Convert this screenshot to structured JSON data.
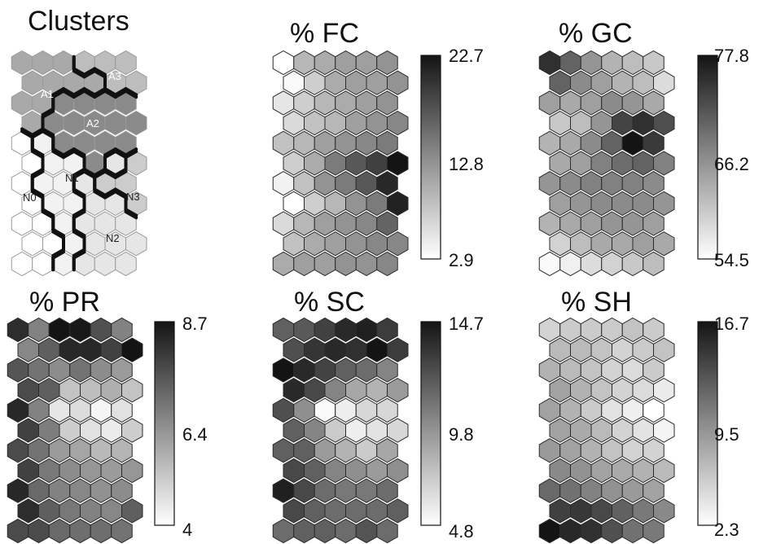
{
  "chart_data": [
    {
      "type": "heatmap",
      "title": "Clusters",
      "grid": {
        "rows": 11,
        "cols": 6
      },
      "cluster_labels": [
        "A1",
        "A2",
        "A3",
        "N0",
        "N1",
        "N2",
        "N3"
      ],
      "regions": [
        {
          "label": "A3",
          "cells": [
            "0,3",
            "0,4",
            "0,5",
            "1,4",
            "1,5"
          ],
          "color": "#bdbdbd"
        },
        {
          "label": "A1",
          "cells": [
            "0,0",
            "0,1",
            "0,2",
            "1,0",
            "1,1",
            "1,2",
            "1,3",
            "2,0",
            "2,1",
            "3,0"
          ],
          "color": "#a9a9a9"
        },
        {
          "label": "A2",
          "cells": [
            "2,2",
            "2,3",
            "2,4",
            "2,5",
            "3,1",
            "3,2",
            "3,3",
            "3,4",
            "3,5",
            "4,2",
            "4,3",
            "4,4",
            "4,5",
            "5,3"
          ],
          "color": "#8a8a8a"
        },
        {
          "label": "N3",
          "cells": [
            "5,5",
            "6,4",
            "6,5",
            "7,5"
          ],
          "color": "#cccccc"
        },
        {
          "label": "N2",
          "cells": [
            "5,4",
            "6,3",
            "7,3",
            "7,4",
            "8,3",
            "8,4",
            "8,5",
            "9,3",
            "9,4",
            "9,5",
            "10,3",
            "10,4",
            "10,5"
          ],
          "color": "#e6e6e6"
        },
        {
          "label": "N1",
          "cells": [
            "4,1",
            "5,1",
            "5,2",
            "6,1",
            "6,2",
            "7,1",
            "7,2",
            "8,2",
            "9,2",
            "10,2"
          ],
          "color": "#f2f2f2"
        },
        {
          "label": "N0",
          "cells": [
            "4,0",
            "5,0",
            "6,0",
            "7,0",
            "8,0",
            "8,1",
            "9,0",
            "9,1",
            "10,0",
            "10,1"
          ],
          "color": "#ffffff"
        }
      ]
    },
    {
      "type": "heatmap",
      "title": "% FC",
      "colorbar": {
        "min": 2.9,
        "mid": 12.8,
        "max": 22.7,
        "ticks": [
          "22.7",
          "12.8",
          "2.9"
        ]
      },
      "grid": {
        "rows": 11,
        "cols": 6
      },
      "values": [
        [
          2.9,
          9,
          10,
          11,
          11,
          12
        ],
        [
          3.3,
          7,
          10,
          11,
          11,
          12
        ],
        [
          5,
          7,
          9,
          10,
          11,
          12
        ],
        [
          6,
          8,
          9,
          11,
          12,
          13
        ],
        [
          8,
          9,
          11,
          12,
          13,
          14
        ],
        [
          7,
          10,
          14,
          17,
          19,
          22.7
        ],
        [
          4,
          8,
          12,
          14,
          17,
          21
        ],
        [
          2.9,
          7,
          9,
          12,
          14,
          21.5
        ],
        [
          6,
          9,
          11,
          12,
          13,
          16
        ],
        [
          8,
          10,
          11,
          12,
          13,
          13
        ],
        [
          10,
          11,
          11,
          12,
          12,
          13
        ]
      ]
    },
    {
      "type": "heatmap",
      "title": "% GC",
      "colorbar": {
        "min": 54.5,
        "mid": 66.2,
        "max": 77.8,
        "ticks": [
          "77.8",
          "66.2",
          "54.5"
        ]
      },
      "grid": {
        "rows": 11,
        "cols": 6
      },
      "values": [
        [
          75,
          70,
          65,
          62,
          61,
          60
        ],
        [
          70,
          66,
          64,
          62,
          61,
          58
        ],
        [
          64,
          63,
          64,
          66,
          65,
          63
        ],
        [
          60,
          61,
          65,
          73,
          75,
          72
        ],
        [
          62,
          63,
          66,
          70,
          77.8,
          74
        ],
        [
          63,
          64,
          67,
          69,
          70,
          67
        ],
        [
          65,
          66,
          67,
          67,
          67,
          66
        ],
        [
          64,
          65,
          66,
          66,
          66,
          65
        ],
        [
          62,
          63,
          64,
          65,
          65,
          64
        ],
        [
          59,
          61,
          63,
          63,
          64,
          63
        ],
        [
          55,
          56,
          58,
          59,
          60,
          61
        ]
      ]
    },
    {
      "type": "heatmap",
      "title": "% PR",
      "colorbar": {
        "min": 4,
        "mid": 6.4,
        "max": 8.7,
        "ticks": [
          "8.7",
          "6.4",
          "4"
        ]
      },
      "grid": {
        "rows": 11,
        "cols": 6
      },
      "values": [
        [
          8.2,
          6.5,
          8.7,
          8.6,
          7.5,
          6.5
        ],
        [
          6.4,
          7.2,
          8.3,
          8.3,
          7.8,
          8.7
        ],
        [
          7.4,
          6.8,
          6.3,
          6.8,
          6.3,
          6
        ],
        [
          7.6,
          7.2,
          5.2,
          5.3,
          5.6,
          5.2
        ],
        [
          8.3,
          6.5,
          4.5,
          4.7,
          4.2,
          4.6
        ],
        [
          7.8,
          6.6,
          5.0,
          4.6,
          4.4,
          5.0
        ],
        [
          7.6,
          6.8,
          6.0,
          5.8,
          5.4,
          5.5
        ],
        [
          7.8,
          6.7,
          6.3,
          6.1,
          6.0,
          6.1
        ],
        [
          8.3,
          7.0,
          6.5,
          6.4,
          6.2,
          6.3
        ],
        [
          8.2,
          7.2,
          6.7,
          6.5,
          6.4,
          7.2
        ],
        [
          7.6,
          7.6,
          7.0,
          6.9,
          6.9,
          6.8
        ]
      ]
    },
    {
      "type": "heatmap",
      "title": "% SC",
      "colorbar": {
        "min": 4.8,
        "mid": 9.8,
        "max": 14.7,
        "ticks": [
          "14.7",
          "9.8",
          "4.8"
        ]
      },
      "grid": {
        "rows": 11,
        "cols": 6
      },
      "values": [
        [
          11.5,
          11.8,
          12.8,
          13.8,
          14.2,
          13
        ],
        [
          12.2,
          13.3,
          13.8,
          13.5,
          14.7,
          13
        ],
        [
          14.7,
          13.8,
          12.7,
          11.5,
          11,
          10
        ],
        [
          13.8,
          12.5,
          10,
          8.5,
          8,
          9
        ],
        [
          12.2,
          9.5,
          5,
          5.5,
          6.5,
          6.5
        ],
        [
          11.5,
          10,
          7,
          5.5,
          6,
          6.5
        ],
        [
          11.5,
          11.5,
          9,
          8,
          7,
          8.5
        ],
        [
          12.5,
          11.5,
          10,
          9.5,
          9,
          9.5
        ],
        [
          14.2,
          12.5,
          11,
          10.5,
          10.5,
          11
        ],
        [
          12.5,
          11.5,
          11,
          11,
          11,
          11.5
        ],
        [
          11,
          11.5,
          11.5,
          11,
          12,
          11
        ]
      ]
    },
    {
      "type": "heatmap",
      "title": "% SH",
      "colorbar": {
        "min": 2.3,
        "mid": 9.5,
        "max": 16.7,
        "ticks": [
          "16.7",
          "9.5",
          "2.3"
        ]
      },
      "grid": {
        "rows": 11,
        "cols": 6
      },
      "values": [
        [
          5,
          5.5,
          5.5,
          5.5,
          6,
          5.5
        ],
        [
          6.5,
          6.5,
          6,
          5,
          5.5,
          6
        ],
        [
          7,
          6.5,
          6,
          5,
          4.5,
          5.5
        ],
        [
          8,
          7,
          6,
          5,
          4.5,
          3.5
        ],
        [
          8,
          7,
          5.5,
          4,
          3.3,
          2.3
        ],
        [
          8,
          7.5,
          6.5,
          5,
          4,
          3
        ],
        [
          8.5,
          8,
          7,
          6,
          5,
          5
        ],
        [
          9.5,
          9,
          8,
          7.5,
          7,
          6.5
        ],
        [
          11.5,
          11,
          10,
          9,
          8.5,
          8
        ],
        [
          14,
          14.5,
          13.5,
          12,
          10.5,
          9.5
        ],
        [
          16.7,
          15.5,
          15,
          13,
          11,
          10.5
        ]
      ]
    }
  ]
}
